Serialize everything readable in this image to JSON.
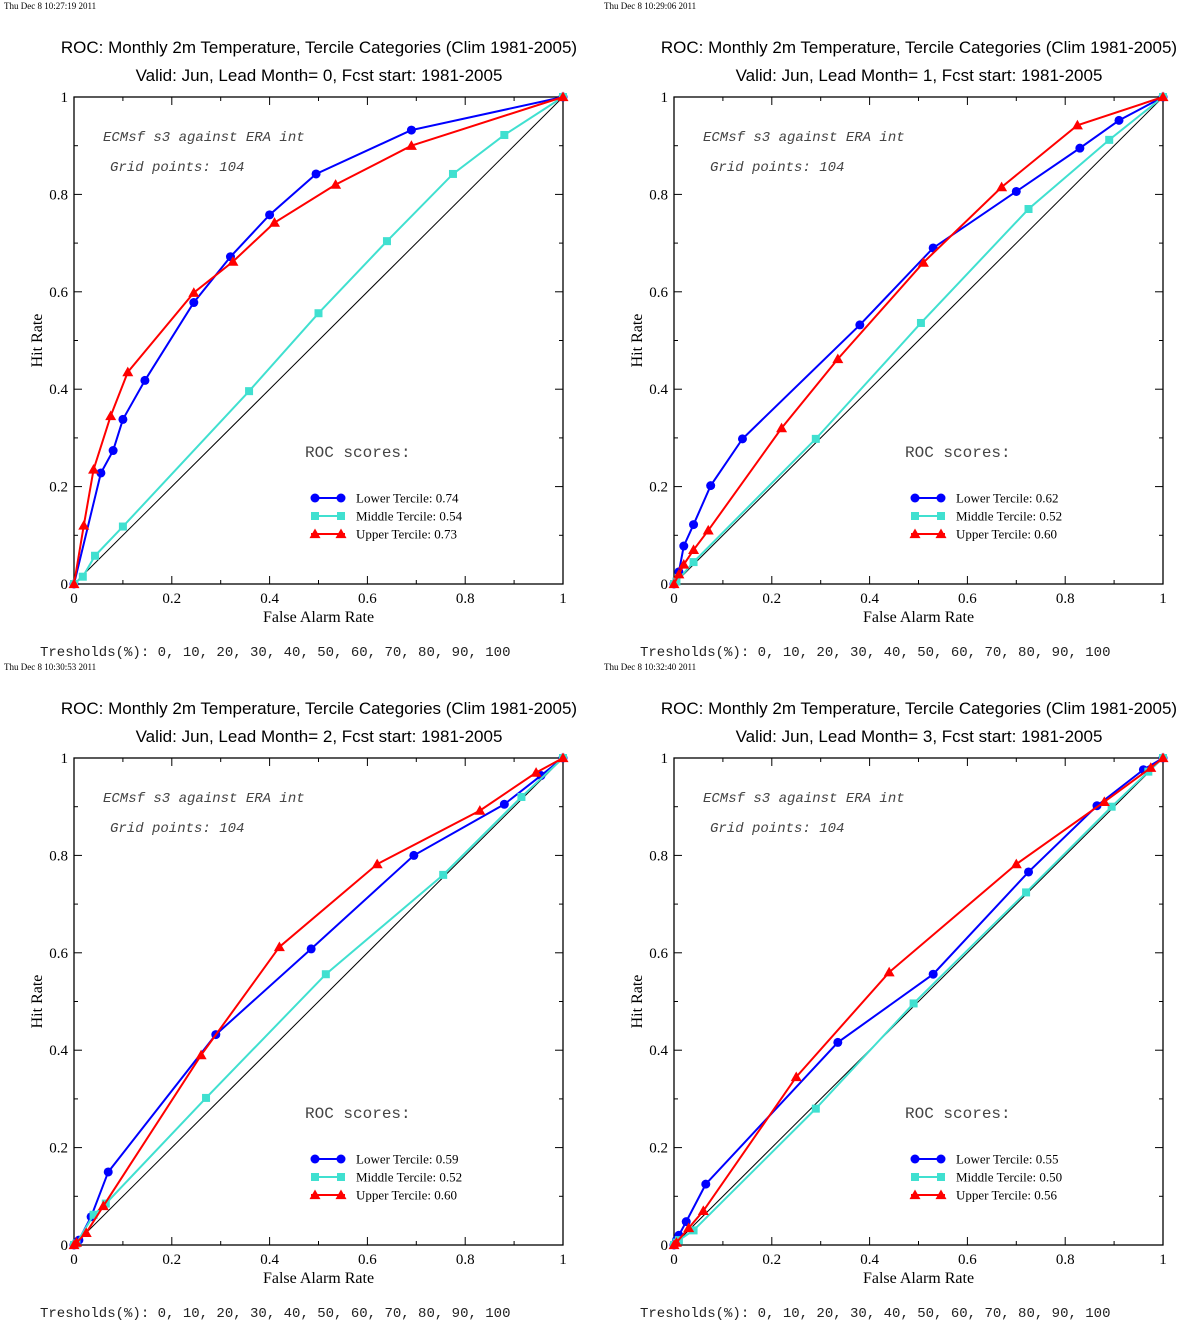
{
  "chart_data": [
    {
      "type": "line",
      "timestamp": "Thu Dec  8 10:27:19 2011",
      "title": "ROC: Monthly 2m Temperature, Tercile Categories (Clim 1981-2005)",
      "subtitle": "Valid: Jun, Lead Month= 0, Fcst start: 1981-2005",
      "xlabel": "False Alarm Rate",
      "ylabel": "Hit Rate",
      "xlim": [
        0,
        1
      ],
      "ylim": [
        0,
        1
      ],
      "xticks": [
        "0",
        "0.2",
        "0.4",
        "0.6",
        "0.8",
        "1"
      ],
      "yticks": [
        "0",
        "0.2",
        "0.4",
        "0.6",
        "0.8",
        "1"
      ],
      "grid": false,
      "legend_position": "bottom-right",
      "notes": [
        "ECMsf s3 against ERA int",
        "Grid points:  104"
      ],
      "scores_heading": "ROC scores:",
      "thresholds_text": "Tresholds(%): 0, 10, 20, 30, 40, 50, 60, 70, 80, 90, 100",
      "series": [
        {
          "name": "Lower Tercile: 0.74",
          "color": "#0000ff",
          "marker": "circle",
          "x": [
            0,
            0.055,
            0.08,
            0.1,
            0.145,
            0.245,
            0.32,
            0.4,
            0.495,
            0.69,
            1
          ],
          "y": [
            0,
            0.228,
            0.274,
            0.338,
            0.418,
            0.578,
            0.672,
            0.758,
            0.842,
            0.932,
            1
          ]
        },
        {
          "name": "Middle Tercile: 0.54",
          "color": "#40e0d0",
          "marker": "square",
          "x": [
            0,
            0.018,
            0.043,
            0.1,
            0.358,
            0.5,
            0.64,
            0.775,
            0.88,
            1
          ],
          "y": [
            0,
            0.015,
            0.058,
            0.118,
            0.396,
            0.556,
            0.704,
            0.842,
            0.922,
            1
          ]
        },
        {
          "name": "Upper Tercile: 0.73",
          "color": "#ff0000",
          "marker": "triangle",
          "x": [
            0,
            0.02,
            0.04,
            0.075,
            0.11,
            0.245,
            0.325,
            0.41,
            0.535,
            0.69,
            1
          ],
          "y": [
            0,
            0.12,
            0.235,
            0.345,
            0.435,
            0.598,
            0.662,
            0.742,
            0.82,
            0.9,
            1
          ]
        }
      ]
    },
    {
      "type": "line",
      "timestamp": "Thu Dec  8 10:29:06 2011",
      "title": "ROC: Monthly 2m Temperature, Tercile Categories (Clim 1981-2005)",
      "subtitle": "Valid: Jun, Lead Month= 1, Fcst start: 1981-2005",
      "xlabel": "False Alarm Rate",
      "ylabel": "Hit Rate",
      "xlim": [
        0,
        1
      ],
      "ylim": [
        0,
        1
      ],
      "xticks": [
        "0",
        "0.2",
        "0.4",
        "0.6",
        "0.8",
        "1"
      ],
      "yticks": [
        "0",
        "0.2",
        "0.4",
        "0.6",
        "0.8",
        "1"
      ],
      "grid": false,
      "legend_position": "bottom-right",
      "notes": [
        "ECMsf s3 against ERA int",
        "Grid points:  104"
      ],
      "scores_heading": "ROC scores:",
      "thresholds_text": "Tresholds(%): 0, 10, 20, 30, 40, 50, 60, 70, 80, 90, 100",
      "series": [
        {
          "name": "Lower Tercile: 0.62",
          "color": "#0000ff",
          "marker": "circle",
          "x": [
            0,
            0.01,
            0.02,
            0.04,
            0.075,
            0.14,
            0.38,
            0.53,
            0.7,
            0.83,
            0.91,
            1
          ],
          "y": [
            0,
            0.025,
            0.078,
            0.122,
            0.202,
            0.298,
            0.532,
            0.69,
            0.806,
            0.895,
            0.952,
            1
          ]
        },
        {
          "name": "Middle Tercile: 0.52",
          "color": "#40e0d0",
          "marker": "square",
          "x": [
            0,
            0.005,
            0.04,
            0.29,
            0.505,
            0.725,
            0.89,
            1
          ],
          "y": [
            0,
            0.005,
            0.045,
            0.298,
            0.536,
            0.77,
            0.912,
            1
          ]
        },
        {
          "name": "Upper Tercile: 0.60",
          "color": "#ff0000",
          "marker": "triangle",
          "x": [
            0,
            0.01,
            0.02,
            0.04,
            0.07,
            0.22,
            0.335,
            0.51,
            0.67,
            0.825,
            1
          ],
          "y": [
            0,
            0.02,
            0.04,
            0.07,
            0.11,
            0.32,
            0.462,
            0.66,
            0.815,
            0.942,
            1
          ]
        }
      ]
    },
    {
      "type": "line",
      "timestamp": "Thu Dec  8 10:30:53 2011",
      "title": "ROC: Monthly 2m Temperature, Tercile Categories (Clim 1981-2005)",
      "subtitle": "Valid: Jun, Lead Month= 2, Fcst start: 1981-2005",
      "xlabel": "False Alarm Rate",
      "ylabel": "Hit Rate",
      "xlim": [
        0,
        1
      ],
      "ylim": [
        0,
        1
      ],
      "xticks": [
        "0",
        "0.2",
        "0.4",
        "0.6",
        "0.8",
        "1"
      ],
      "yticks": [
        "0",
        "0.2",
        "0.4",
        "0.6",
        "0.8",
        "1"
      ],
      "grid": false,
      "legend_position": "bottom-right",
      "notes": [
        "ECMsf s3 against ERA int",
        "Grid points:  104"
      ],
      "scores_heading": "ROC scores:",
      "thresholds_text": "Tresholds(%): 0, 10, 20, 30, 40, 50, 60, 70, 80, 90, 100",
      "series": [
        {
          "name": "Lower Tercile: 0.59",
          "color": "#0000ff",
          "marker": "circle",
          "x": [
            0,
            0.005,
            0.01,
            0.035,
            0.07,
            0.29,
            0.485,
            0.695,
            0.88,
            0.955,
            1
          ],
          "y": [
            0,
            0.005,
            0.01,
            0.058,
            0.15,
            0.432,
            0.608,
            0.8,
            0.905,
            0.964,
            1
          ]
        },
        {
          "name": "Middle Tercile: 0.52",
          "color": "#40e0d0",
          "marker": "square",
          "x": [
            0,
            0.005,
            0.04,
            0.065,
            0.27,
            0.515,
            0.755,
            0.915,
            1
          ],
          "y": [
            0,
            0.003,
            0.062,
            0.085,
            0.302,
            0.556,
            0.76,
            0.92,
            1
          ]
        },
        {
          "name": "Upper Tercile: 0.60",
          "color": "#ff0000",
          "marker": "triangle",
          "x": [
            0,
            0.005,
            0.025,
            0.06,
            0.26,
            0.42,
            0.62,
            0.83,
            0.945,
            1
          ],
          "y": [
            0,
            0.005,
            0.025,
            0.08,
            0.39,
            0.612,
            0.782,
            0.892,
            0.97,
            1
          ]
        }
      ]
    },
    {
      "type": "line",
      "timestamp": "Thu Dec  8 10:32:40 2011",
      "title": "ROC: Monthly 2m Temperature, Tercile Categories (Clim 1981-2005)",
      "subtitle": "Valid: Jun, Lead Month= 3, Fcst start: 1981-2005",
      "xlabel": "False Alarm Rate",
      "ylabel": "Hit Rate",
      "xlim": [
        0,
        1
      ],
      "ylim": [
        0,
        1
      ],
      "xticks": [
        "0",
        "0.2",
        "0.4",
        "0.6",
        "0.8",
        "1"
      ],
      "yticks": [
        "0",
        "0.2",
        "0.4",
        "0.6",
        "0.8",
        "1"
      ],
      "grid": false,
      "legend_position": "bottom-right",
      "notes": [
        "ECMsf s3 against ERA int",
        "Grid points:  104"
      ],
      "scores_heading": "ROC scores:",
      "thresholds_text": "Tresholds(%): 0, 10, 20, 30, 40, 50, 60, 70, 80, 90, 100",
      "series": [
        {
          "name": "Lower Tercile: 0.55",
          "color": "#0000ff",
          "marker": "circle",
          "x": [
            0,
            0.005,
            0.01,
            0.025,
            0.065,
            0.335,
            0.53,
            0.725,
            0.865,
            0.96,
            1
          ],
          "y": [
            0,
            0.01,
            0.02,
            0.048,
            0.125,
            0.416,
            0.556,
            0.766,
            0.902,
            0.976,
            1
          ]
        },
        {
          "name": "Middle Tercile: 0.50",
          "color": "#40e0d0",
          "marker": "square",
          "x": [
            0,
            0.005,
            0.01,
            0.04,
            0.29,
            0.49,
            0.72,
            0.895,
            0.97,
            1
          ],
          "y": [
            0,
            0.005,
            0.01,
            0.03,
            0.28,
            0.496,
            0.724,
            0.9,
            0.972,
            1
          ]
        },
        {
          "name": "Upper Tercile: 0.56",
          "color": "#ff0000",
          "marker": "triangle",
          "x": [
            0,
            0.005,
            0.03,
            0.06,
            0.25,
            0.44,
            0.7,
            0.88,
            0.975,
            1
          ],
          "y": [
            0,
            0.005,
            0.035,
            0.07,
            0.345,
            0.56,
            0.782,
            0.91,
            0.98,
            1
          ]
        }
      ]
    }
  ]
}
